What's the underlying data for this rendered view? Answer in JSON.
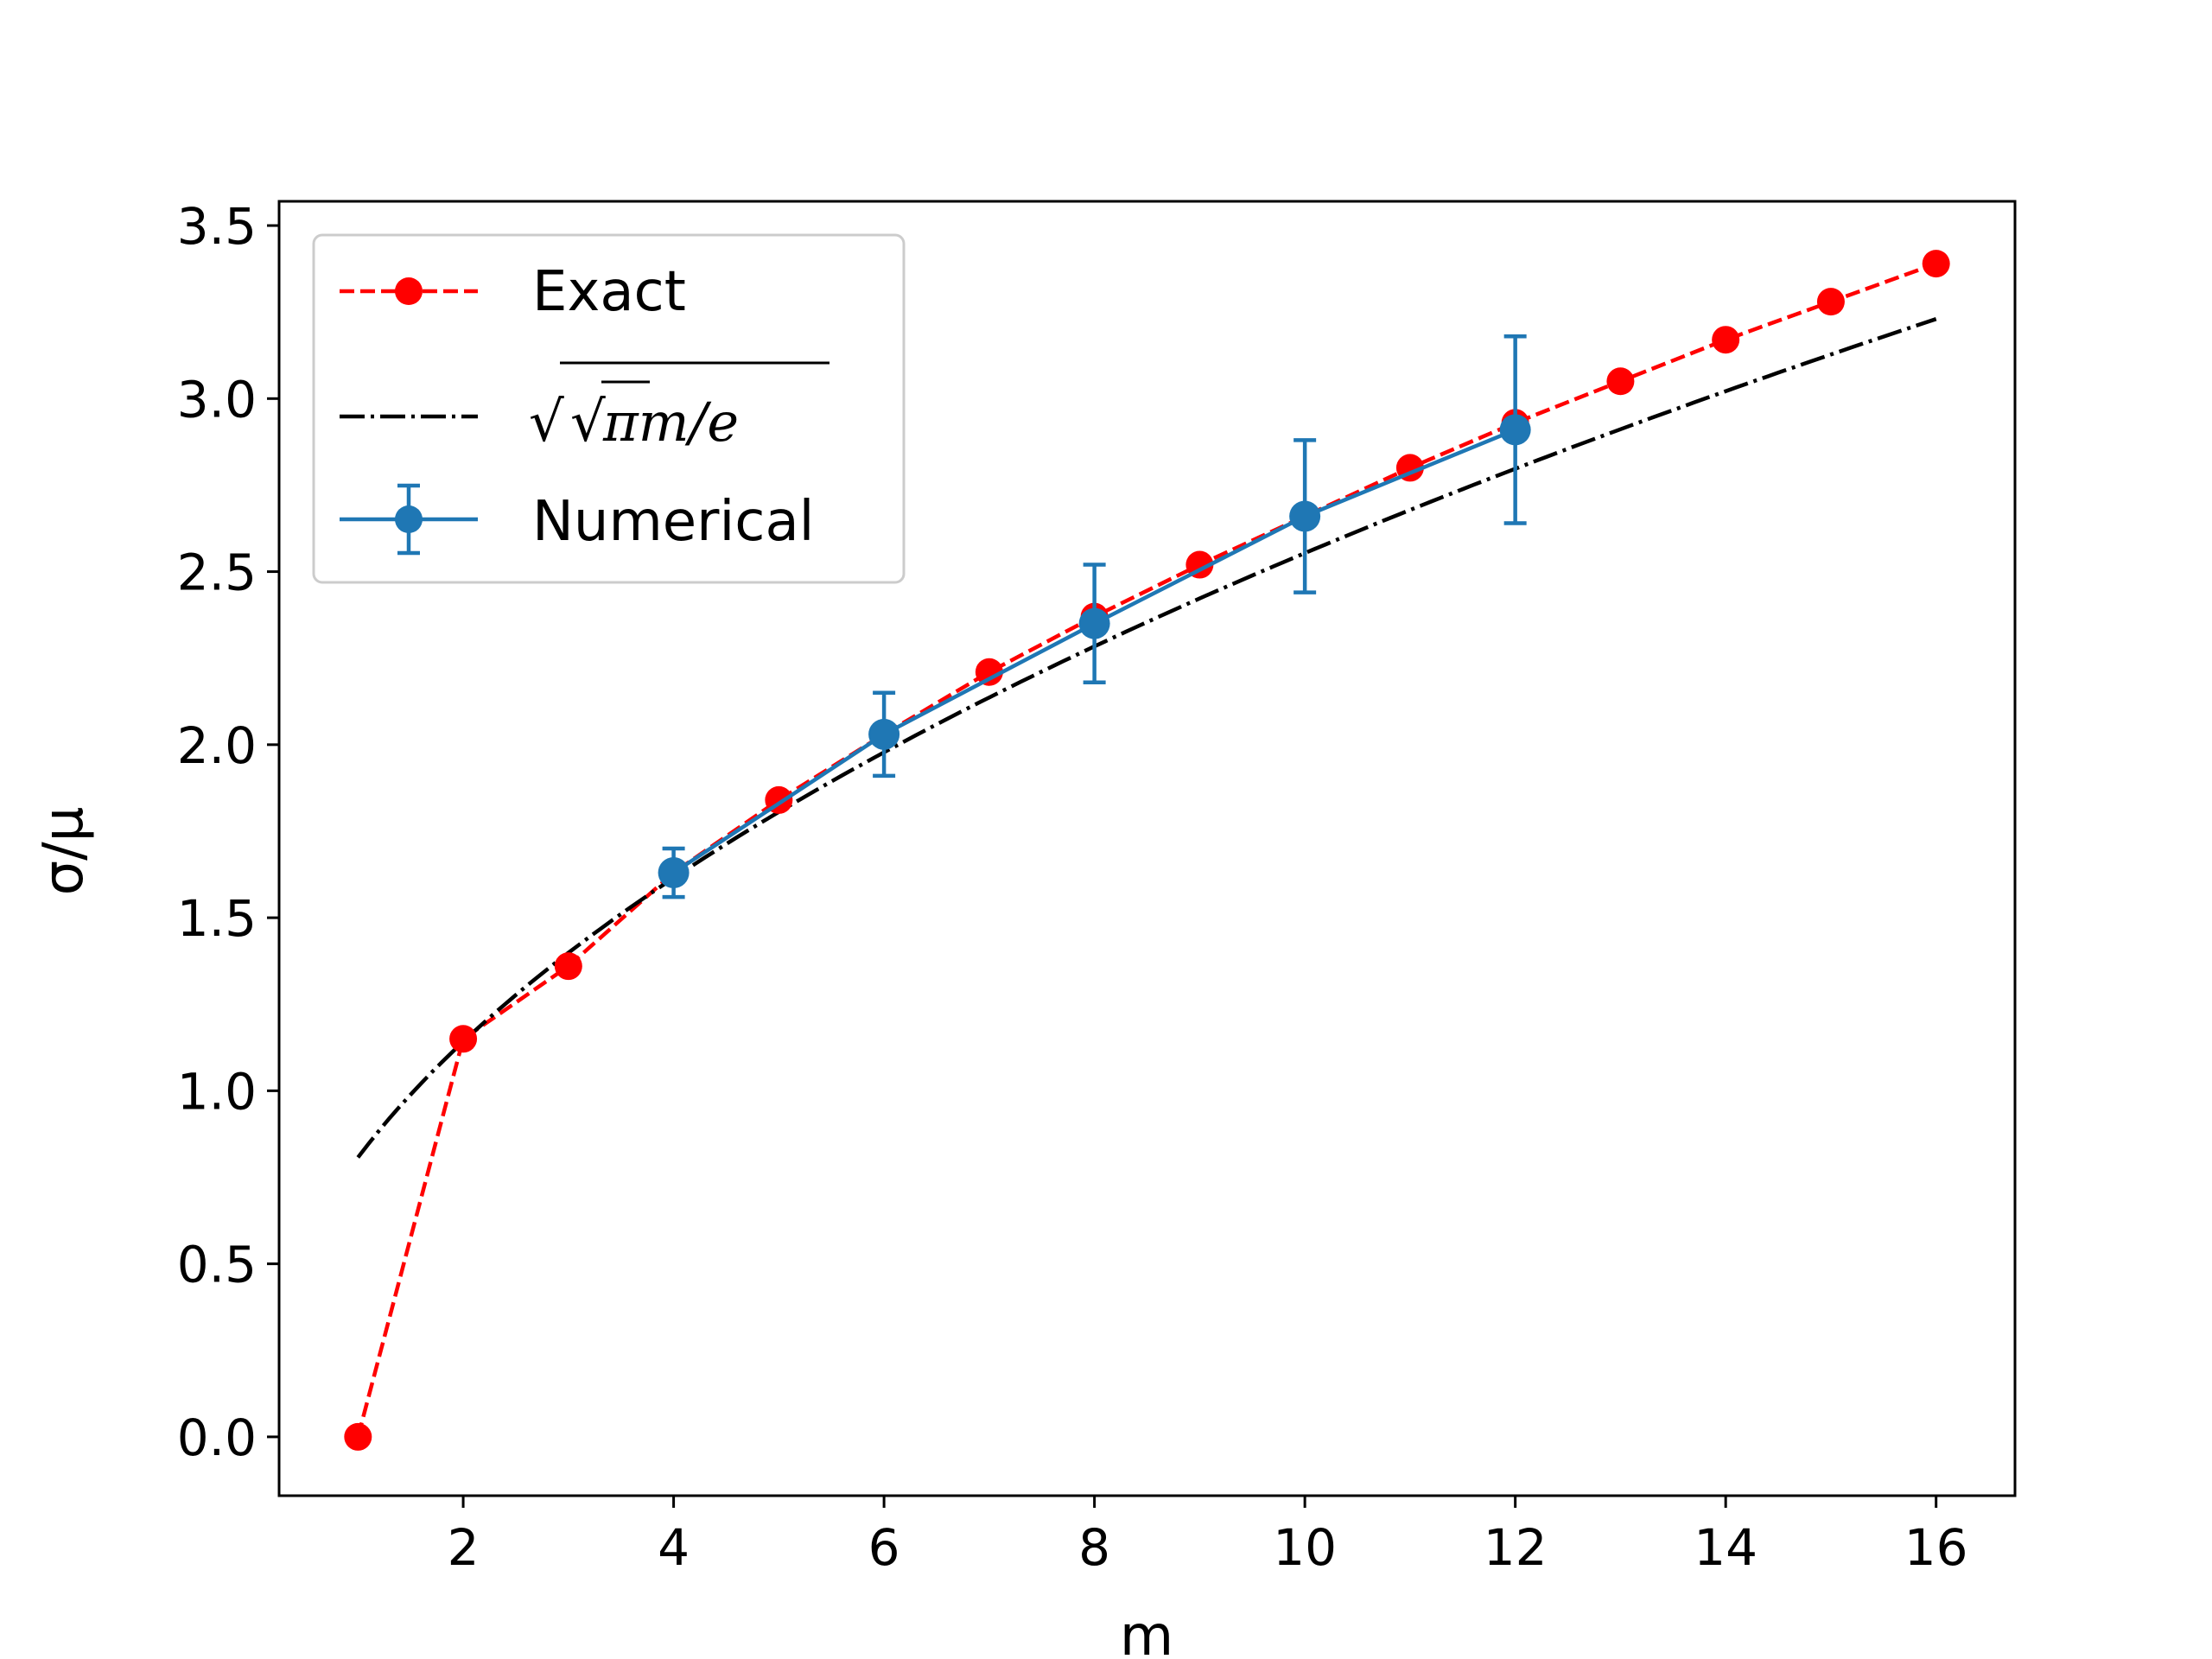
{
  "chart_data": {
    "type": "line",
    "title": "",
    "xlabel": "m",
    "ylabel": "σ/μ",
    "xlim": [
      0.25,
      16.75
    ],
    "ylim": [
      -0.17,
      3.57
    ],
    "xticks": [
      2,
      4,
      6,
      8,
      10,
      12,
      14,
      16
    ],
    "xtick_labels": [
      "2",
      "4",
      "6",
      "8",
      "10",
      "12",
      "14",
      "16"
    ],
    "yticks": [
      0.0,
      0.5,
      1.0,
      1.5,
      2.0,
      2.5,
      3.0,
      3.5
    ],
    "ytick_labels": [
      "0.0",
      "0.5",
      "1.0",
      "1.5",
      "2.0",
      "2.5",
      "3.0",
      "3.5"
    ],
    "grid": false,
    "legend_position": "upper-left",
    "series": [
      {
        "name": "Exact",
        "style": "red dashed line with circle markers",
        "color": "#ff0000",
        "x": [
          1,
          2,
          3,
          4,
          5,
          6,
          7,
          8,
          9,
          10,
          11,
          12,
          13,
          14,
          15,
          16
        ],
        "y": [
          0.0,
          1.15,
          1.36,
          1.63,
          1.84,
          2.03,
          2.21,
          2.37,
          2.52,
          2.66,
          2.8,
          2.93,
          3.05,
          3.17,
          3.28,
          3.39
        ]
      },
      {
        "name": "√(√π m/e)",
        "legend_label_parts": {
          "outer_radical": "√",
          "inner_radical": "√",
          "body": "πm/e"
        },
        "style": "black dash-dot line",
        "color": "#000000",
        "formula": "sqrt(sqrt(pi)*m/e)",
        "x_range": [
          1,
          16
        ]
      },
      {
        "name": "Numerical",
        "style": "blue solid line with circle markers and error bars",
        "color": "#1f77b4",
        "x": [
          4,
          6,
          8,
          10,
          12
        ],
        "y": [
          1.63,
          2.03,
          2.35,
          2.66,
          2.91
        ],
        "yerr": [
          0.07,
          0.12,
          0.17,
          0.22,
          0.27
        ]
      }
    ]
  }
}
